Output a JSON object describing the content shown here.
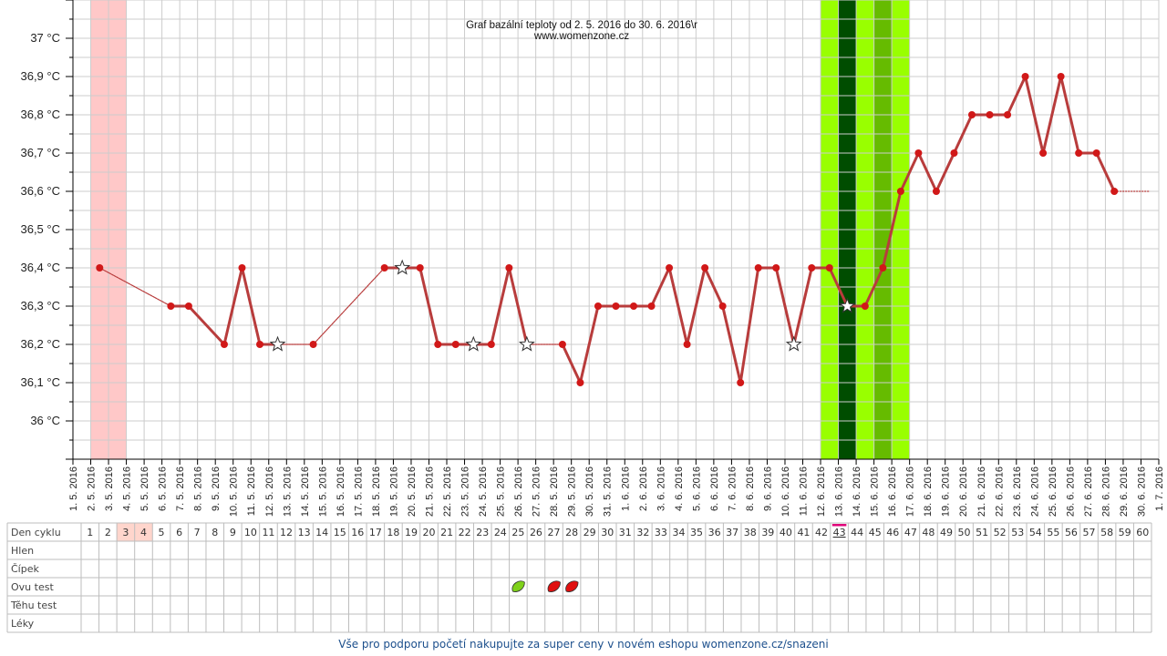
{
  "chart_data": {
    "type": "line",
    "title": "Graf bazální teploty od 2. 5. 2016 do 30. 6. 2016\\r",
    "subtitle": "www.womenzone.cz",
    "xlabel": "",
    "ylabel": "",
    "ylim": [
      35.9,
      37.1
    ],
    "y_tick_values": [
      36.0,
      36.1,
      36.2,
      36.3,
      36.4,
      36.5,
      36.6,
      36.7,
      36.8,
      36.9,
      37.0
    ],
    "y_tick_labels": [
      "36 °C",
      "36,1 °C",
      "36,2 °C",
      "36,3 °C",
      "36,4 °C",
      "36,5 °C",
      "36,6 °C",
      "36,7 °C",
      "36,8 °C",
      "36,9 °C",
      "37 °C"
    ],
    "x": [
      "1. 5. 2016",
      "2. 5. 2016",
      "3. 5. 2016",
      "4. 5. 2016",
      "5. 5. 2016",
      "6. 5. 2016",
      "7. 5. 2016",
      "8. 5. 2016",
      "9. 5. 2016",
      "10. 5. 2016",
      "11. 5. 2016",
      "12. 5. 2016",
      "13. 5. 2016",
      "14. 5. 2016",
      "15. 5. 2016",
      "16. 5. 2016",
      "17. 5. 2016",
      "18. 5. 2016",
      "19. 5. 2016",
      "20. 5. 2016",
      "21. 5. 2016",
      "22. 5. 2016",
      "23. 5. 2016",
      "24. 5. 2016",
      "25. 5. 2016",
      "26. 5. 2016",
      "27. 5. 2016",
      "28. 5. 2016",
      "29. 5. 2016",
      "30. 5. 2016",
      "31. 5. 2016",
      "1. 6. 2016",
      "2. 6. 2016",
      "3. 6. 2016",
      "4. 6. 2016",
      "5. 6. 2016",
      "6. 6. 2016",
      "7. 6. 2016",
      "8. 6. 2016",
      "9. 6. 2016",
      "10. 6. 2016",
      "11. 6. 2016",
      "12. 6. 2016",
      "13. 6. 2016",
      "14. 6. 2016",
      "15. 6. 2016",
      "16. 6. 2016",
      "17. 6. 2016",
      "18. 6. 2016",
      "19. 6. 2016",
      "20. 6. 2016",
      "21. 6. 2016",
      "22. 6. 2016",
      "23. 6. 2016",
      "24. 6. 2016",
      "25. 6. 2016",
      "26. 6. 2016",
      "27. 6. 2016",
      "28. 6. 2016",
      "29. 6. 2016",
      "30. 6. 2016",
      "1. 7. 2016"
    ],
    "series": [
      {
        "values": [
          null,
          36.4,
          null,
          null,
          null,
          36.3,
          36.3,
          null,
          36.2,
          36.4,
          36.2,
          36.2,
          null,
          36.2,
          null,
          null,
          null,
          36.4,
          36.4,
          36.4,
          36.2,
          36.2,
          36.2,
          36.2,
          36.4,
          36.2,
          null,
          36.2,
          36.1,
          36.3,
          36.3,
          36.3,
          36.3,
          36.4,
          36.2,
          36.4,
          36.3,
          36.1,
          36.4,
          36.4,
          36.2,
          36.4,
          36.4,
          36.3,
          36.3,
          36.4,
          36.6,
          36.7,
          36.6,
          36.7,
          36.8,
          36.8,
          36.8,
          36.9,
          36.7,
          36.9,
          36.7,
          36.7,
          36.6,
          null,
          null,
          null
        ],
        "star_markers": [
          "12. 5. 2016",
          "19. 5. 2016",
          "23. 5. 2016",
          "26. 5. 2016",
          "10. 6. 2016",
          "13. 6. 2016"
        ],
        "dotted_segments": [
          [
            "2. 5. 2016",
            "6. 5. 2016"
          ],
          [
            "12. 5. 2016",
            "14. 5. 2016"
          ],
          [
            "14. 5. 2016",
            "18. 5. 2016"
          ],
          [
            "26. 5. 2016",
            "28. 5. 2016"
          ]
        ],
        "extension": [
          "28. 6. 2016",
          "30. 6. 2016"
        ]
      }
    ],
    "highlight_bands": {
      "period": {
        "from": "2. 5. 2016",
        "to": "3. 5. 2016",
        "color": "#ffc8c8"
      },
      "fertile_light": {
        "from": "12. 6. 2016",
        "to": "16. 6. 2016",
        "color": "#99ff00"
      },
      "fertile_medium": {
        "from": "15. 6. 2016",
        "to": "15. 6. 2016",
        "color": "#66bb00"
      },
      "fertile_dark": {
        "from": "13. 6. 2016",
        "to": "13. 6. 2016",
        "color": "#004d00"
      }
    },
    "grid": true,
    "legend": "none",
    "colors": {
      "line": "#b83c3c",
      "point": "#d11818",
      "grid": "#cccccc",
      "pink_cell": "#ffd5cc",
      "today_marker": "#e0007a"
    },
    "table": {
      "row_labels": [
        "Den cyklu",
        "Hlen",
        "Čípek",
        "Ovu test",
        "Těhu test",
        "Léky"
      ],
      "cycle_days": [
        "1",
        "2",
        "3",
        "4",
        "5",
        "6",
        "7",
        "8",
        "9",
        "10",
        "11",
        "12",
        "13",
        "14",
        "15",
        "16",
        "17",
        "18",
        "19",
        "20",
        "21",
        "22",
        "23",
        "24",
        "25",
        "26",
        "27",
        "28",
        "29",
        "30",
        "31",
        "32",
        "33",
        "34",
        "35",
        "36",
        "37",
        "38",
        "39",
        "40",
        "41",
        "42",
        "43",
        "44",
        "45",
        "46",
        "47",
        "48",
        "49",
        "50",
        "51",
        "52",
        "53",
        "54",
        "55",
        "56",
        "57",
        "58",
        "59",
        "60"
      ],
      "highlighted_days": [
        "3",
        "4"
      ],
      "current_day": "43",
      "ovu_tests": [
        {
          "day": "25",
          "result": "negative",
          "color": "#7fd11b"
        },
        {
          "day": "27",
          "result": "positive",
          "color": "#e01010"
        },
        {
          "day": "28",
          "result": "positive",
          "color": "#e01010"
        }
      ]
    }
  },
  "footer": {
    "text": "Vše pro podporu početí nakupujte za super ceny v novém eshopu womenzone.cz/snazeni"
  }
}
